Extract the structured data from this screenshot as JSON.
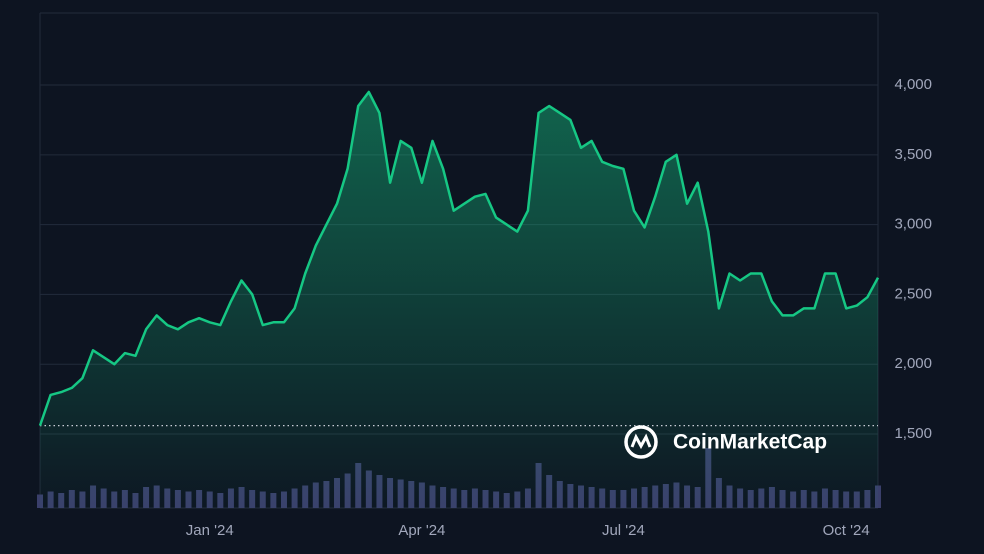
{
  "chart_data": {
    "type": "line",
    "categories": [
      null,
      null,
      null,
      null,
      null,
      null,
      null,
      null,
      null,
      null,
      null,
      null,
      null,
      null,
      null,
      null,
      "Jan '24",
      null,
      null,
      null,
      null,
      null,
      null,
      null,
      null,
      null,
      null,
      null,
      null,
      null,
      null,
      null,
      null,
      null,
      null,
      null,
      "Apr '24",
      null,
      null,
      null,
      null,
      null,
      null,
      null,
      null,
      null,
      null,
      null,
      null,
      null,
      null,
      null,
      null,
      null,
      null,
      "Jul '24",
      null,
      null,
      null,
      null,
      null,
      null,
      null,
      null,
      null,
      null,
      null,
      null,
      null,
      null,
      null,
      null,
      null,
      null,
      null,
      null,
      "Oct '24",
      null,
      null,
      null
    ],
    "values": [
      1560,
      1780,
      1800,
      1830,
      1900,
      2100,
      2050,
      2000,
      2080,
      2060,
      2250,
      2350,
      2280,
      2250,
      2300,
      2330,
      2300,
      2280,
      2450,
      2600,
      2500,
      2280,
      2300,
      2300,
      2400,
      2650,
      2850,
      3000,
      3150,
      3400,
      3850,
      3950,
      3800,
      3300,
      3600,
      3550,
      3300,
      3600,
      3400,
      3100,
      3150,
      3200,
      3220,
      3050,
      3000,
      2950,
      3100,
      3800,
      3850,
      3800,
      3750,
      3550,
      3600,
      3450,
      3420,
      3400,
      3100,
      2980,
      3200,
      3450,
      3500,
      3150,
      3300,
      2950,
      2400,
      2650,
      2600,
      2650,
      2650,
      2450,
      2350,
      2350,
      2400,
      2400,
      2650,
      2650,
      2400,
      2420,
      2480,
      2620
    ],
    "color": "#16c784",
    "volume": {
      "color": "#3a3f6b",
      "values": [
        18,
        22,
        20,
        24,
        22,
        30,
        26,
        22,
        24,
        20,
        28,
        30,
        26,
        24,
        22,
        24,
        22,
        20,
        26,
        28,
        24,
        22,
        20,
        22,
        26,
        30,
        34,
        36,
        40,
        46,
        60,
        50,
        44,
        40,
        38,
        36,
        34,
        30,
        28,
        26,
        24,
        26,
        24,
        22,
        20,
        22,
        26,
        60,
        44,
        36,
        32,
        30,
        28,
        26,
        24,
        24,
        26,
        28,
        30,
        32,
        34,
        30,
        28,
        80,
        40,
        30,
        26,
        24,
        26,
        28,
        24,
        22,
        24,
        22,
        26,
        24,
        22,
        22,
        24,
        30
      ]
    },
    "baseline": 1560,
    "watermark": "CoinMarketCap",
    "ylim": [
      970,
      4516
    ],
    "yticks": [
      {
        "value": 1500,
        "label": "1,500"
      },
      {
        "value": 2000,
        "label": "2,000"
      },
      {
        "value": 2500,
        "label": "2,500"
      },
      {
        "value": 3000,
        "label": "3,000"
      },
      {
        "value": 3500,
        "label": "3,500"
      },
      {
        "value": 4000,
        "label": "4,000"
      }
    ],
    "grid": true
  }
}
